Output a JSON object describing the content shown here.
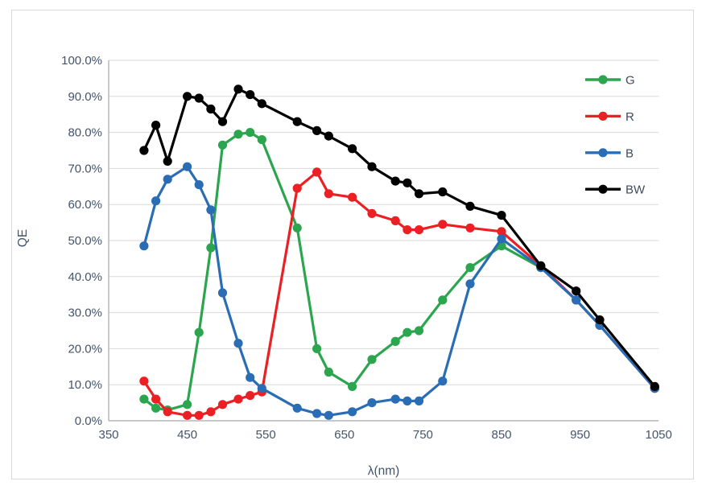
{
  "chart_data": {
    "type": "line",
    "title": "",
    "xlabel": "λ(nm)",
    "ylabel": "QE",
    "xlim": [
      350,
      1050
    ],
    "ylim_percent": [
      0,
      100
    ],
    "x_ticks": [
      350,
      450,
      550,
      650,
      750,
      850,
      950,
      1050
    ],
    "y_ticks_percent": [
      0,
      10,
      20,
      30,
      40,
      50,
      60,
      70,
      80,
      90,
      100
    ],
    "grid": "horizontal-on",
    "legend_position": "inside-top-right",
    "x_nm": [
      395,
      410,
      425,
      450,
      465,
      480,
      495,
      515,
      530,
      545,
      590,
      615,
      630,
      660,
      685,
      715,
      730,
      745,
      775,
      810,
      850,
      900,
      945,
      975,
      1045
    ],
    "series": [
      {
        "name": "G",
        "color": "#2BA64E",
        "values": [
          6,
          3.5,
          3,
          4.5,
          24.5,
          48,
          76.5,
          79.5,
          80,
          78,
          53.5,
          20,
          13.5,
          9.5,
          17,
          22,
          24.5,
          25,
          33.5,
          42.5,
          48.5,
          42.5,
          33.5,
          26.5,
          9
        ]
      },
      {
        "name": "R",
        "color": "#EC2024",
        "values": [
          11,
          6,
          2.5,
          1.5,
          1.5,
          2.5,
          4.5,
          6,
          7,
          8,
          64.5,
          69,
          63,
          62,
          57.5,
          55.5,
          53,
          53,
          54.5,
          53.5,
          52.5,
          43,
          33.5,
          26.5,
          9
        ]
      },
      {
        "name": "B",
        "color": "#2A6DB5",
        "values": [
          48.5,
          61,
          67,
          70.5,
          65.5,
          58.5,
          35.5,
          21.5,
          12,
          9,
          3.5,
          2,
          1.5,
          2.5,
          5,
          6,
          5.5,
          5.5,
          11,
          38,
          50.5,
          42.5,
          33.5,
          26.5,
          9
        ]
      },
      {
        "name": "BW",
        "color": "#000000",
        "values": [
          75,
          82,
          72,
          90,
          89.5,
          86.5,
          83,
          92,
          90.5,
          88,
          83,
          80.5,
          79,
          75.5,
          70.5,
          66.5,
          66,
          63,
          63.5,
          59.5,
          57,
          43,
          36,
          28,
          9.5
        ]
      }
    ],
    "legend": [
      "G",
      "R",
      "B",
      "BW"
    ]
  },
  "style_colors": {
    "gridline": "#d9d9d9",
    "axis_line": "#a6a6a6",
    "tick_text": "#44546A",
    "frame_border": "#d9d9d9",
    "background": "#ffffff"
  }
}
